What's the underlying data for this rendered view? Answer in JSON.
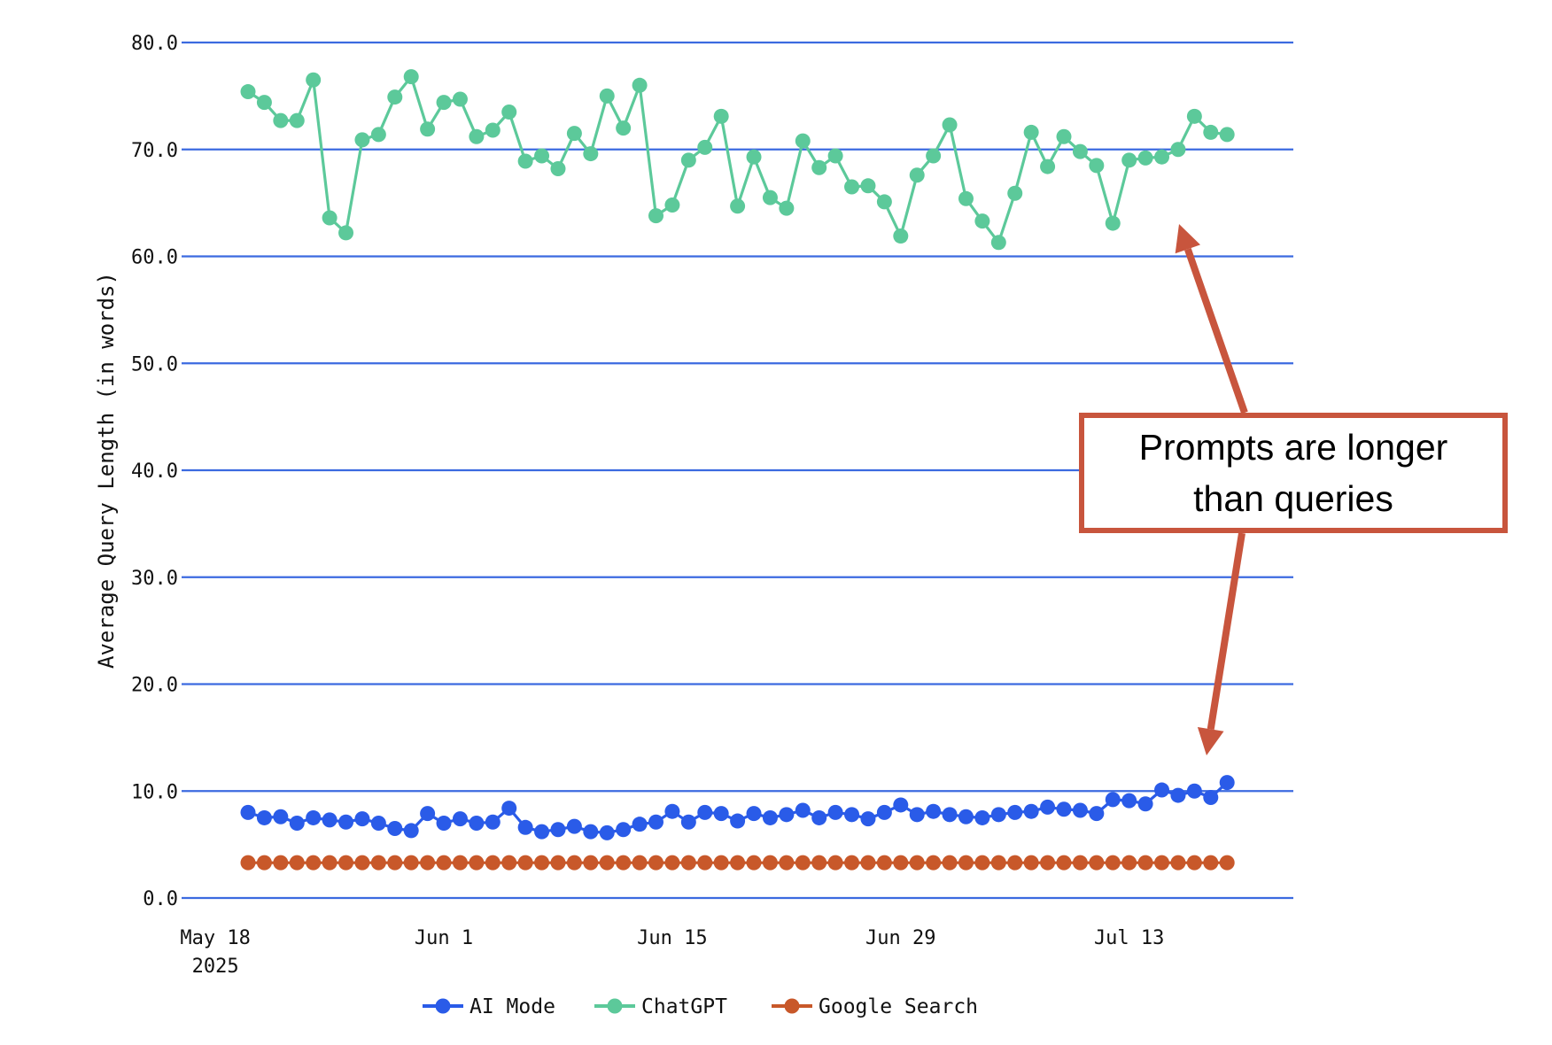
{
  "chart_data": {
    "type": "line",
    "title": "",
    "xlabel": "",
    "ylabel": "Average Query Length (in words)",
    "ylim": [
      0,
      80
    ],
    "yticks": [
      "0.0",
      "10.0",
      "20.0",
      "30.0",
      "40.0",
      "50.0",
      "60.0",
      "70.0",
      "80.0"
    ],
    "xticks": [
      {
        "label": "May 18",
        "sublabel": "2025",
        "day_index": -2
      },
      {
        "label": "Jun 1",
        "sublabel": "",
        "day_index": 12
      },
      {
        "label": "Jun 15",
        "sublabel": "",
        "day_index": 26
      },
      {
        "label": "Jun 29",
        "sublabel": "",
        "day_index": 40
      },
      {
        "label": "Jul 13",
        "sublabel": "",
        "day_index": 54
      }
    ],
    "x_range": {
      "start": "May 20 2025",
      "end": "Jul 19 2025",
      "points": 61,
      "interval": "daily"
    },
    "grid": true,
    "legend_position": "bottom",
    "series": [
      {
        "name": "AI Mode",
        "color": "#2a5be8",
        "values": [
          8.0,
          7.5,
          7.6,
          7.0,
          7.5,
          7.3,
          7.1,
          7.4,
          7.0,
          6.5,
          6.3,
          7.9,
          7.0,
          7.4,
          7.0,
          7.1,
          8.4,
          6.6,
          6.2,
          6.4,
          6.7,
          6.2,
          6.1,
          6.4,
          6.9,
          7.1,
          8.1,
          7.1,
          8.0,
          7.9,
          7.2,
          7.9,
          7.5,
          7.8,
          8.2,
          7.5,
          8.0,
          7.8,
          7.4,
          8.0,
          8.7,
          7.8,
          8.1,
          7.8,
          7.6,
          7.5,
          7.8,
          8.0,
          8.1,
          8.5,
          8.3,
          8.2,
          7.9,
          9.2,
          9.1,
          8.8,
          10.1,
          9.6,
          10.0,
          9.4,
          10.8
        ]
      },
      {
        "name": "ChatGPT",
        "color": "#5cc99a",
        "values": [
          75.4,
          74.4,
          72.7,
          72.7,
          76.5,
          63.6,
          62.2,
          70.9,
          71.4,
          74.9,
          76.8,
          71.9,
          74.4,
          74.7,
          71.2,
          71.8,
          73.5,
          68.9,
          69.4,
          68.2,
          71.5,
          69.6,
          75.0,
          72.0,
          76.0,
          63.8,
          64.8,
          69.0,
          70.2,
          73.1,
          64.7,
          69.3,
          65.5,
          64.5,
          70.8,
          68.3,
          69.4,
          66.5,
          66.6,
          65.1,
          61.9,
          67.6,
          69.4,
          72.3,
          65.4,
          63.3,
          61.3,
          65.9,
          71.6,
          68.4,
          71.2,
          69.8,
          68.5,
          63.1,
          69.0,
          69.2,
          69.3,
          70.0,
          73.1,
          71.6,
          71.4
        ]
      },
      {
        "name": "Google Search",
        "color": "#c8582a",
        "values": [
          3.3,
          3.3,
          3.3,
          3.3,
          3.3,
          3.3,
          3.3,
          3.3,
          3.3,
          3.3,
          3.3,
          3.3,
          3.3,
          3.3,
          3.3,
          3.3,
          3.3,
          3.3,
          3.3,
          3.3,
          3.3,
          3.3,
          3.3,
          3.3,
          3.3,
          3.3,
          3.3,
          3.3,
          3.3,
          3.3,
          3.3,
          3.3,
          3.3,
          3.3,
          3.3,
          3.3,
          3.3,
          3.3,
          3.3,
          3.3,
          3.3,
          3.3,
          3.3,
          3.3,
          3.3,
          3.3,
          3.3,
          3.3,
          3.3,
          3.3,
          3.3,
          3.3,
          3.3,
          3.3,
          3.3,
          3.3,
          3.3,
          3.3,
          3.3,
          3.3,
          3.3
        ]
      }
    ],
    "gridline_color": "#3b6ae0",
    "annotation": {
      "lines": [
        "Prompts are longer",
        "than queries"
      ],
      "color": "#c8553d",
      "arrows": [
        "points up to ChatGPT series",
        "points down to AI Mode series"
      ]
    }
  }
}
